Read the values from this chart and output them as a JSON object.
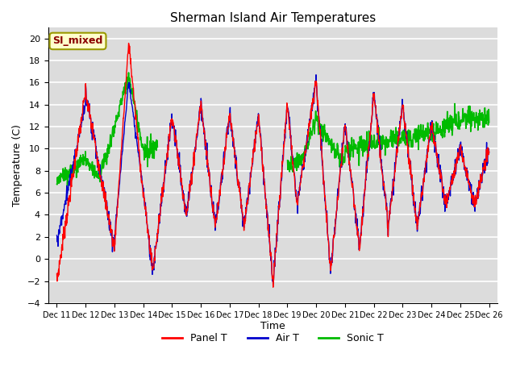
{
  "title": "Sherman Island Air Temperatures",
  "xlabel": "Time",
  "ylabel": "Temperature (C)",
  "ylim": [
    -4,
    21
  ],
  "yticks": [
    -4,
    -2,
    0,
    2,
    4,
    6,
    8,
    10,
    12,
    14,
    16,
    18,
    20
  ],
  "xticklabels": [
    "Dec 11",
    "Dec 12",
    "Dec 13",
    "Dec 14",
    "Dec 15",
    "Dec 16",
    "Dec 17",
    "Dec 18",
    "Dec 19",
    "Dec 20",
    "Dec 21",
    "Dec 22",
    "Dec 23",
    "Dec 24",
    "Dec 25",
    "Dec 26"
  ],
  "annotation_text": "SI_mixed",
  "annotation_color": "#8B0000",
  "annotation_bg": "#FFFFCC",
  "bg_color": "#DCDCDC",
  "line_colors": {
    "panel": "#FF0000",
    "air": "#0000CC",
    "sonic": "#00BB00"
  },
  "legend_labels": [
    "Panel T",
    "Air T",
    "Sonic T"
  ],
  "figsize": [
    6.4,
    4.8
  ],
  "dpi": 100
}
